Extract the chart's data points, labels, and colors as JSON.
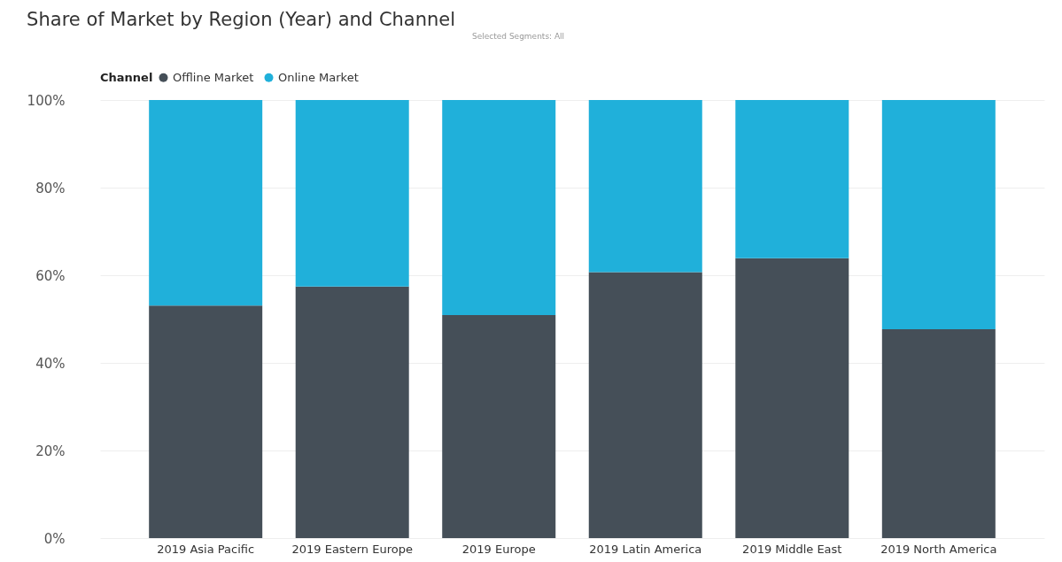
{
  "chart_data": {
    "type": "bar",
    "title": "Share of Market by Region (Year) and Channel",
    "legend_title": "Channel",
    "annotations": [
      "Selected Segments: All"
    ],
    "categories": [
      "2019 Asia Pacific",
      "2019 Eastern Europe",
      "2019 Europe",
      "2019 Latin America",
      "2019 Middle East",
      "2019 North America"
    ],
    "stacked": true,
    "series": [
      {
        "name": "Offline Market",
        "color": "#454f58",
        "values": [
          53.1,
          57.4,
          50.9,
          60.7,
          63.9,
          47.7
        ]
      },
      {
        "name": "Online Market",
        "color": "#20b0da",
        "values": [
          46.9,
          42.6,
          49.1,
          39.3,
          36.1,
          52.3
        ]
      }
    ],
    "ylim": [
      0,
      100
    ],
    "yticks": [
      {
        "value": 0,
        "label": "0%"
      },
      {
        "value": 20,
        "label": "20%"
      },
      {
        "value": 40,
        "label": "40%"
      },
      {
        "value": 60,
        "label": "60%"
      },
      {
        "value": 80,
        "label": "80%"
      },
      {
        "value": 100,
        "label": "100%"
      }
    ],
    "grid": "y",
    "legend": "top left"
  }
}
